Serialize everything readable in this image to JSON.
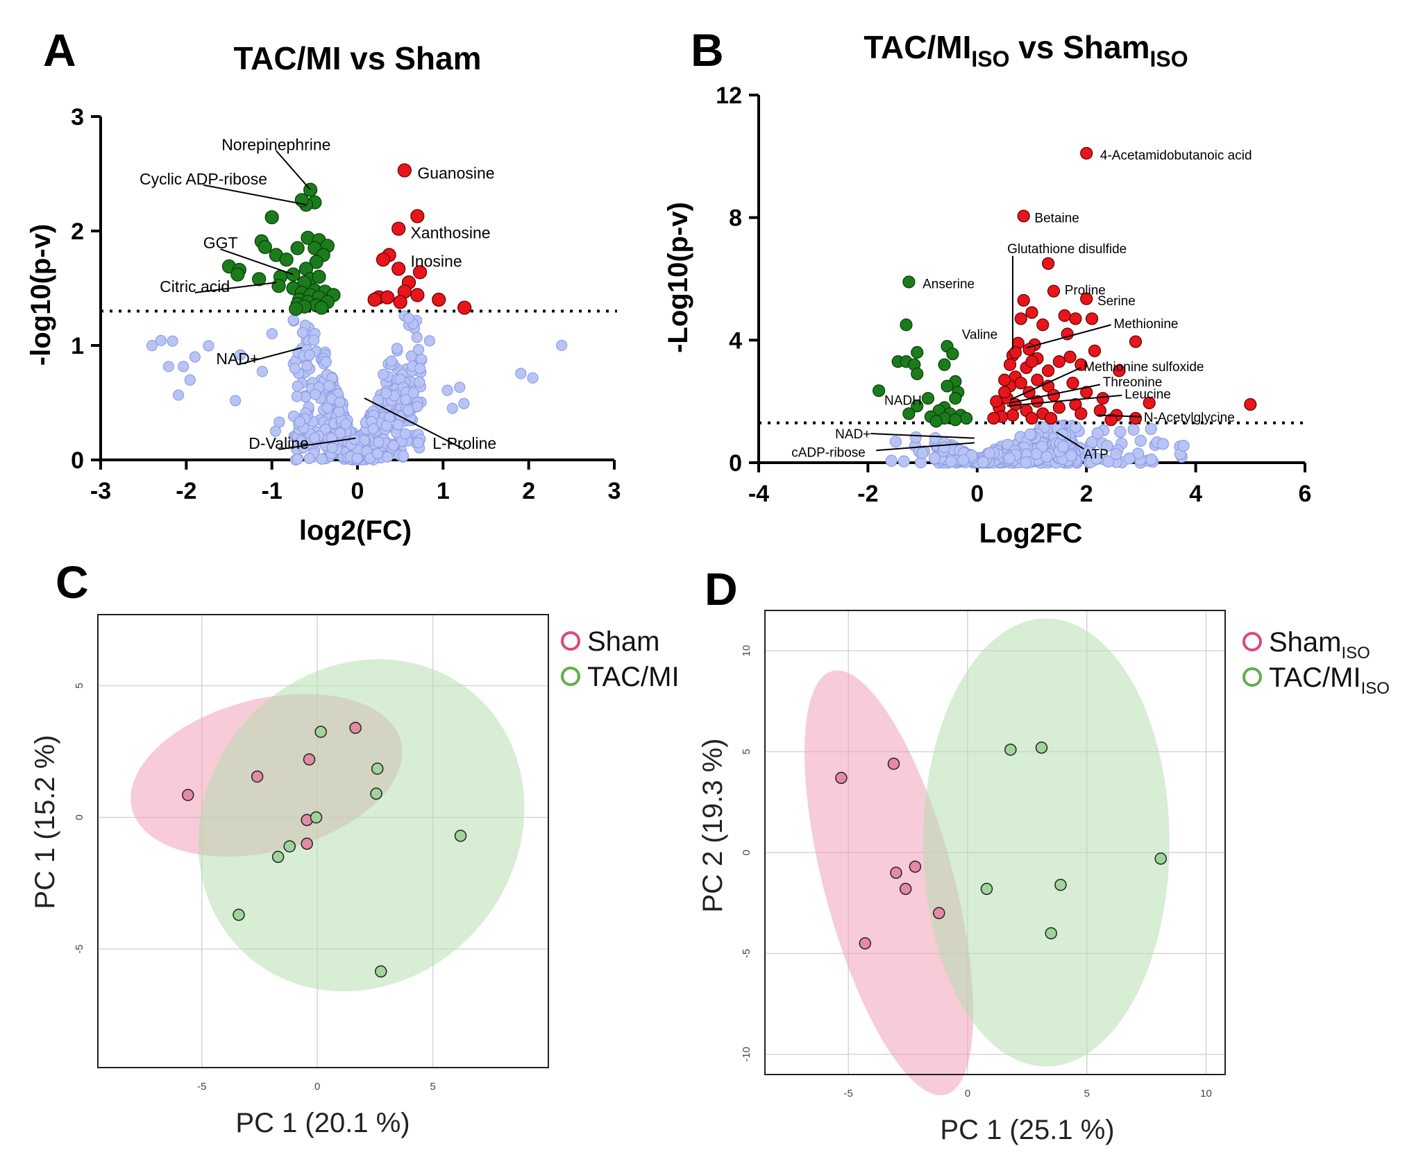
{
  "panels": {
    "A": {
      "letter": "A",
      "title": "TAC/MI vs Sham",
      "xlabel": "log2(FC)",
      "ylabel": "-log10(p-v)"
    },
    "B": {
      "letter": "B",
      "title_main": "TAC/MI",
      "title_sub1": "ISO",
      "title_mid": " vs Sham",
      "title_sub2": "ISO",
      "xlabel": "Log2FC",
      "ylabel": "-Log10(p-v)"
    },
    "C": {
      "letter": "C",
      "xlabel": "PC 1 (20.1 %)",
      "ylabel": "PC 1 (15.2 %)",
      "legend": [
        {
          "label": "Sham",
          "sub": "",
          "color": "#e0457b"
        },
        {
          "label": "TAC/MI",
          "sub": "",
          "color": "#5fae4a"
        }
      ]
    },
    "D": {
      "letter": "D",
      "xlabel": "PC 1 (25.1 %)",
      "ylabel": "PC 2 (19.3 %)",
      "legend": [
        {
          "label": "Sham",
          "sub": "ISO",
          "color": "#e0457b"
        },
        {
          "label": "TAC/MI",
          "sub": "ISO",
          "color": "#5fae4a"
        }
      ]
    }
  },
  "colors": {
    "up": "#e8151b",
    "down": "#1b7c1b",
    "ns": "#b8c4f4",
    "ns_stroke": "#8e9ce8",
    "sham": "#e0457b",
    "tac": "#5fae4a",
    "sham_fill": "#f0a0b8",
    "tac_fill": "#b6dfb0"
  },
  "chart_data": [
    {
      "id": "A",
      "type": "scatter",
      "title": "TAC/MI vs Sham",
      "xlabel": "log2(FC)",
      "ylabel": "-log10(p-v)",
      "xlim": [
        -3,
        3
      ],
      "ylim": [
        0,
        3
      ],
      "xticks": [
        -3,
        -2,
        -1,
        0,
        1,
        2,
        3
      ],
      "yticks": [
        0,
        1,
        2,
        3
      ],
      "threshold": 1.3,
      "up": [
        [
          0.55,
          2.53
        ],
        [
          0.7,
          2.13
        ],
        [
          0.48,
          2.02
        ],
        [
          0.37,
          1.79
        ],
        [
          0.3,
          1.75
        ],
        [
          0.48,
          1.67
        ],
        [
          0.73,
          1.64
        ],
        [
          0.6,
          1.55
        ],
        [
          0.55,
          1.47
        ],
        [
          0.25,
          1.42
        ],
        [
          0.35,
          1.42
        ],
        [
          0.5,
          1.38
        ],
        [
          0.2,
          1.4
        ],
        [
          0.95,
          1.4
        ],
        [
          0.7,
          1.44
        ],
        [
          1.25,
          1.33
        ]
      ],
      "down": [
        [
          -0.55,
          2.36
        ],
        [
          -0.5,
          2.25
        ],
        [
          -0.6,
          2.23
        ],
        [
          -0.65,
          2.27
        ],
        [
          -1.0,
          2.12
        ],
        [
          -1.12,
          1.91
        ],
        [
          -0.58,
          1.94
        ],
        [
          -0.45,
          1.92
        ],
        [
          -0.35,
          1.87
        ],
        [
          -0.5,
          1.85
        ],
        [
          -0.7,
          1.85
        ],
        [
          -1.08,
          1.86
        ],
        [
          -0.95,
          1.79
        ],
        [
          -1.5,
          1.69
        ],
        [
          -0.83,
          1.75
        ],
        [
          -0.4,
          1.79
        ],
        [
          -0.48,
          1.73
        ],
        [
          -1.38,
          1.66
        ],
        [
          -1.4,
          1.62
        ],
        [
          -0.6,
          1.67
        ],
        [
          -0.75,
          1.62
        ],
        [
          -0.9,
          1.6
        ],
        [
          -1.15,
          1.58
        ],
        [
          -0.55,
          1.58
        ],
        [
          -0.45,
          1.6
        ],
        [
          -0.62,
          1.55
        ],
        [
          -0.92,
          1.52
        ],
        [
          -0.75,
          1.5
        ],
        [
          -0.5,
          1.48
        ],
        [
          -0.65,
          1.46
        ],
        [
          -0.38,
          1.47
        ],
        [
          -0.55,
          1.44
        ],
        [
          -0.28,
          1.44
        ],
        [
          -0.45,
          1.42
        ],
        [
          -0.68,
          1.4
        ],
        [
          -0.58,
          1.38
        ],
        [
          -0.35,
          1.38
        ],
        [
          -0.7,
          1.36
        ],
        [
          -0.48,
          1.35
        ],
        [
          -0.62,
          1.34
        ],
        [
          -0.72,
          1.32
        ],
        [
          -0.42,
          1.33
        ]
      ],
      "annotations": [
        {
          "text": "Norepinephrine",
          "tx": -0.95,
          "ty": 2.75,
          "anchor": "middle",
          "px": -0.55,
          "py": 2.36
        },
        {
          "text": "Cyclic ADP-ribose",
          "tx": -1.8,
          "ty": 2.45,
          "anchor": "middle",
          "px": -0.6,
          "py": 2.23
        },
        {
          "text": "GGT",
          "tx": -1.6,
          "ty": 1.89,
          "anchor": "middle",
          "px": -0.75,
          "py": 1.62
        },
        {
          "text": "Citric acid",
          "tx": -1.9,
          "ty": 1.51,
          "anchor": "middle",
          "px": -0.95,
          "py": 1.55
        },
        {
          "text": "NAD+",
          "tx": -1.4,
          "ty": 0.88,
          "anchor": "middle",
          "px": -0.65,
          "py": 0.98
        },
        {
          "text": "D-Valine",
          "tx": -0.92,
          "ty": 0.14,
          "anchor": "middle",
          "px": -0.02,
          "py": 0.19
        },
        {
          "text": "L-Proline",
          "tx": 1.25,
          "ty": 0.14,
          "anchor": "middle",
          "px": 0.08,
          "py": 0.54
        },
        {
          "text": "Guanosine",
          "tx": 0.7,
          "ty": 2.5,
          "anchor": "start"
        },
        {
          "text": "Xanthosine",
          "tx": 0.62,
          "ty": 1.98,
          "anchor": "start"
        },
        {
          "text": "Inosine",
          "tx": 0.62,
          "ty": 1.73,
          "anchor": "start"
        }
      ]
    },
    {
      "id": "B",
      "type": "scatter",
      "title": "TAC/MI ISO vs Sham ISO",
      "xlabel": "Log2FC",
      "ylabel": "-Log10(p-v)",
      "xlim": [
        -4,
        6
      ],
      "ylim": [
        0,
        12
      ],
      "xticks": [
        -4,
        -2,
        0,
        2,
        4,
        6
      ],
      "yticks": [
        0,
        4,
        8,
        12
      ],
      "threshold": 1.3,
      "up": [
        [
          2.0,
          10.1
        ],
        [
          0.85,
          8.05
        ],
        [
          1.3,
          6.5
        ],
        [
          1.4,
          5.6
        ],
        [
          2.0,
          5.35
        ],
        [
          0.85,
          5.3
        ],
        [
          1.0,
          4.9
        ],
        [
          0.8,
          4.7
        ],
        [
          1.6,
          4.8
        ],
        [
          1.8,
          4.7
        ],
        [
          2.1,
          4.7
        ],
        [
          1.2,
          4.5
        ],
        [
          1.65,
          4.2
        ],
        [
          2.9,
          3.95
        ],
        [
          0.75,
          3.9
        ],
        [
          1.05,
          3.85
        ],
        [
          0.95,
          3.7
        ],
        [
          2.15,
          3.65
        ],
        [
          0.65,
          3.5
        ],
        [
          1.1,
          3.4
        ],
        [
          1.7,
          3.45
        ],
        [
          1.5,
          3.3
        ],
        [
          0.9,
          3.1
        ],
        [
          1.9,
          3.2
        ],
        [
          1.3,
          3.0
        ],
        [
          2.6,
          3.0
        ],
        [
          0.7,
          2.8
        ],
        [
          1.1,
          2.7
        ],
        [
          1.75,
          2.6
        ],
        [
          0.6,
          2.5
        ],
        [
          1.3,
          2.5
        ],
        [
          2.0,
          2.3
        ],
        [
          2.3,
          2.1
        ],
        [
          0.95,
          2.3
        ],
        [
          1.4,
          2.2
        ],
        [
          0.55,
          2.1
        ],
        [
          1.1,
          2.0
        ],
        [
          1.8,
          1.9
        ],
        [
          3.15,
          1.95
        ],
        [
          5.0,
          1.9
        ],
        [
          0.7,
          1.9
        ],
        [
          1.5,
          1.8
        ],
        [
          0.4,
          1.8
        ],
        [
          2.25,
          1.7
        ],
        [
          0.9,
          1.7
        ],
        [
          2.55,
          1.55
        ],
        [
          1.2,
          1.6
        ],
        [
          0.65,
          1.55
        ],
        [
          1.9,
          1.6
        ],
        [
          2.9,
          1.45
        ],
        [
          0.45,
          1.5
        ],
        [
          1.35,
          1.45
        ],
        [
          0.3,
          1.45
        ],
        [
          2.45,
          1.4
        ],
        [
          1.0,
          1.45
        ],
        [
          0.5,
          2.3
        ],
        [
          0.8,
          2.6
        ],
        [
          1.0,
          3.3
        ],
        [
          0.6,
          3.2
        ],
        [
          0.5,
          2.7
        ],
        [
          0.35,
          2.0
        ],
        [
          0.7,
          3.6
        ]
      ],
      "down": [
        [
          -1.25,
          5.9
        ],
        [
          -1.3,
          4.5
        ],
        [
          -0.55,
          3.8
        ],
        [
          -1.45,
          3.3
        ],
        [
          -1.3,
          3.3
        ],
        [
          -1.1,
          3.6
        ],
        [
          -0.45,
          3.55
        ],
        [
          -1.15,
          3.2
        ],
        [
          -0.6,
          3.2
        ],
        [
          -1.1,
          2.9
        ],
        [
          -0.4,
          2.65
        ],
        [
          -0.55,
          2.5
        ],
        [
          -1.8,
          2.35
        ],
        [
          -0.35,
          2.3
        ],
        [
          -0.4,
          2.1
        ],
        [
          -0.9,
          2.1
        ],
        [
          -1.1,
          1.85
        ],
        [
          -0.6,
          1.8
        ],
        [
          -0.7,
          1.7
        ],
        [
          -0.5,
          1.6
        ],
        [
          -1.25,
          1.6
        ],
        [
          -0.3,
          1.55
        ],
        [
          -0.85,
          1.5
        ],
        [
          -0.2,
          1.45
        ],
        [
          -0.6,
          1.45
        ],
        [
          -0.4,
          1.4
        ],
        [
          -0.75,
          1.35
        ]
      ],
      "annotations": [
        {
          "text": "4-Acetamidobutanoic acid",
          "tx": 2.25,
          "ty": 10.05,
          "anchor": "start"
        },
        {
          "text": "Betaine",
          "tx": 1.05,
          "ty": 8.0,
          "anchor": "start"
        },
        {
          "text": "Glutathione disulfide",
          "tx": 0.55,
          "ty": 7.0,
          "anchor": "start",
          "lx1": 0.65,
          "ly1": 6.75,
          "lx2": 0.65,
          "ly2": 3.7
        },
        {
          "text": "Proline",
          "tx": 1.6,
          "ty": 5.65,
          "anchor": "start"
        },
        {
          "text": "Serine",
          "tx": 2.2,
          "ty": 5.3,
          "anchor": "start"
        },
        {
          "text": "Anserine",
          "tx": -1.0,
          "ty": 5.85,
          "anchor": "start"
        },
        {
          "text": "Methionine",
          "tx": 2.5,
          "ty": 4.55,
          "anchor": "start",
          "lx1": 2.45,
          "ly1": 4.5,
          "lx2": 0.9,
          "ly2": 3.75
        },
        {
          "text": "Valine",
          "tx": -0.28,
          "ty": 4.2,
          "anchor": "start"
        },
        {
          "text": "Methionine sulfoxide",
          "tx": 1.95,
          "ty": 3.15,
          "anchor": "start",
          "lx1": 1.9,
          "ly1": 3.1,
          "lx2": 0.6,
          "ly2": 2.05
        },
        {
          "text": "Threonine",
          "tx": 2.3,
          "ty": 2.65,
          "anchor": "start",
          "lx1": 2.25,
          "ly1": 2.55,
          "lx2": 0.6,
          "ly2": 1.95
        },
        {
          "text": "Leucine",
          "tx": 2.7,
          "ty": 2.25,
          "anchor": "start",
          "lx1": 2.65,
          "ly1": 2.2,
          "lx2": 0.55,
          "ly2": 1.85
        },
        {
          "text": "N-Acetylglycine",
          "tx": 3.05,
          "ty": 1.5,
          "anchor": "start",
          "lx1": 3.0,
          "ly1": 1.5,
          "lx2": 2.2,
          "ly2": 1.55
        },
        {
          "text": "NADH",
          "tx": -1.7,
          "ty": 2.05,
          "anchor": "start"
        },
        {
          "text": "NAD+",
          "tx": -2.6,
          "ty": 0.95,
          "anchor": "start",
          "lx1": -1.95,
          "ly1": 0.95,
          "lx2": -0.05,
          "ly2": 0.8
        },
        {
          "text": "cADP-ribose",
          "tx": -3.4,
          "ty": 0.35,
          "anchor": "start",
          "lx1": -1.85,
          "ly1": 0.4,
          "lx2": -0.05,
          "ly2": 0.65
        },
        {
          "text": "ATP",
          "tx": 1.95,
          "ty": 0.3,
          "anchor": "start",
          "lx1": 1.95,
          "ly1": 0.45,
          "lx2": 1.45,
          "ly2": 1.0
        }
      ]
    },
    {
      "id": "C",
      "type": "scatter",
      "xlabel": "PC 1 (20.1 %)",
      "ylabel": "PC 1 (15.2 %)",
      "xlim": [
        -9.5,
        10
      ],
      "ylim": [
        -9.5,
        7.7
      ],
      "xticks": [
        -5,
        0,
        5
      ],
      "yticks": [
        -5,
        0,
        5
      ],
      "series": [
        {
          "name": "Sham",
          "points": [
            [
              -5.6,
              0.85
            ],
            [
              -2.6,
              1.55
            ],
            [
              -0.35,
              2.2
            ],
            [
              1.65,
              3.4
            ],
            [
              -0.45,
              -0.1
            ],
            [
              -0.45,
              -1.0
            ]
          ]
        },
        {
          "name": "TAC/MI",
          "points": [
            [
              0.15,
              3.25
            ],
            [
              2.6,
              1.85
            ],
            [
              2.55,
              0.9
            ],
            [
              -0.05,
              0.0
            ],
            [
              -1.2,
              -1.1
            ],
            [
              -1.7,
              -1.5
            ],
            [
              6.2,
              -0.7
            ],
            [
              -3.4,
              -3.7
            ],
            [
              2.75,
              -5.85
            ]
          ]
        }
      ],
      "ellipses": [
        {
          "group": "Sham",
          "cx": -2.2,
          "cy": 1.6,
          "rx": 6.0,
          "ry": 2.9,
          "angle": -14
        },
        {
          "group": "TAC/MI",
          "cx": 1.9,
          "cy": -0.3,
          "rx": 7.5,
          "ry": 5.9,
          "angle": -50
        }
      ]
    },
    {
      "id": "D",
      "type": "scatter",
      "xlabel": "PC 1 (25.1 %)",
      "ylabel": "PC 2 (19.3 %)",
      "xlim": [
        -8.5,
        10.8
      ],
      "ylim": [
        -11,
        12
      ],
      "xticks": [
        -5,
        0,
        5,
        10
      ],
      "yticks": [
        -10,
        -5,
        0,
        5,
        10
      ],
      "series": [
        {
          "name": "Sham ISO",
          "points": [
            [
              -5.3,
              3.7
            ],
            [
              -3.1,
              4.4
            ],
            [
              -3.0,
              -1.0
            ],
            [
              -2.2,
              -0.7
            ],
            [
              -2.6,
              -1.8
            ],
            [
              -1.2,
              -3.0
            ],
            [
              -4.3,
              -4.5
            ]
          ]
        },
        {
          "name": "TAC/MI ISO",
          "points": [
            [
              1.8,
              5.1
            ],
            [
              3.1,
              5.2
            ],
            [
              8.1,
              -0.3
            ],
            [
              0.8,
              -1.8
            ],
            [
              3.9,
              -1.6
            ],
            [
              3.5,
              -4.0
            ]
          ]
        }
      ],
      "ellipses": [
        {
          "group": "Sham ISO",
          "cx": -3.3,
          "cy": -1.5,
          "rx": 9.2,
          "ry": 3.2,
          "angle": 75
        },
        {
          "group": "TAC/MI ISO",
          "cx": 3.3,
          "cy": 0.5,
          "rx": 9.4,
          "ry": 6.1,
          "angle": 90
        }
      ]
    }
  ]
}
